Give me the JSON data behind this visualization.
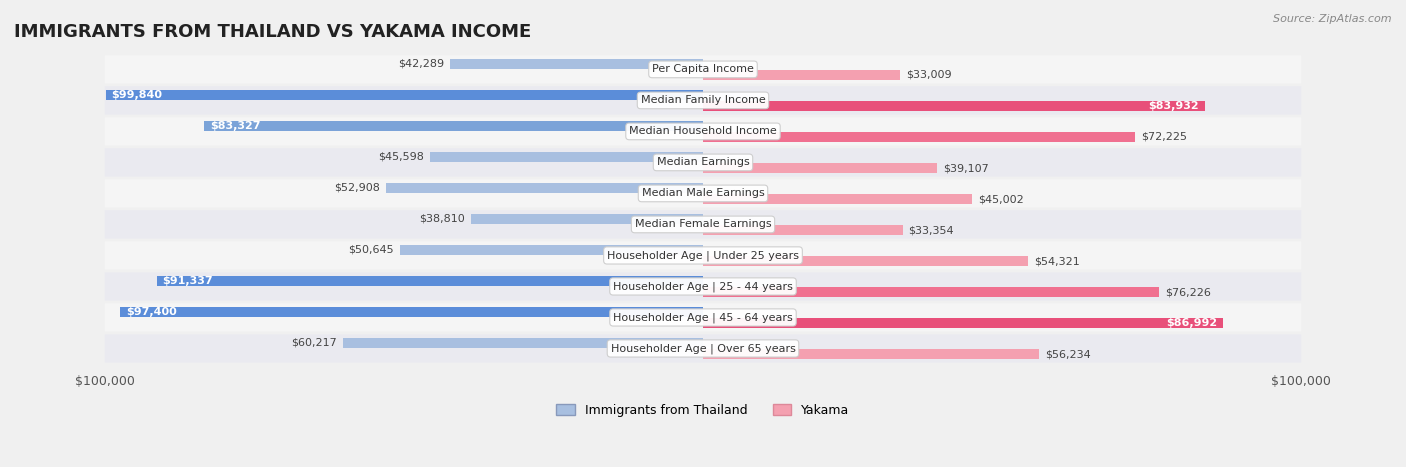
{
  "title": "IMMIGRANTS FROM THAILAND VS YAKAMA INCOME",
  "source": "Source: ZipAtlas.com",
  "categories": [
    "Per Capita Income",
    "Median Family Income",
    "Median Household Income",
    "Median Earnings",
    "Median Male Earnings",
    "Median Female Earnings",
    "Householder Age | Under 25 years",
    "Householder Age | 25 - 44 years",
    "Householder Age | 45 - 64 years",
    "Householder Age | Over 65 years"
  ],
  "thailand_values": [
    42289,
    99840,
    83327,
    45598,
    52908,
    38810,
    50645,
    91337,
    97400,
    60217
  ],
  "yakama_values": [
    33009,
    83932,
    72225,
    39107,
    45002,
    33354,
    54321,
    76226,
    86992,
    56234
  ],
  "thailand_labels": [
    "$42,289",
    "$99,840",
    "$83,327",
    "$45,598",
    "$52,908",
    "$38,810",
    "$50,645",
    "$91,337",
    "$97,400",
    "$60,217"
  ],
  "yakama_labels": [
    "$33,009",
    "$83,932",
    "$72,225",
    "$39,107",
    "$45,002",
    "$33,354",
    "$54,321",
    "$76,226",
    "$86,992",
    "$56,234"
  ],
  "max_value": 100000,
  "thailand_color": "#90aadb",
  "yakama_color": "#f08090",
  "thailand_color_full": "#6688cc",
  "yakama_color_full": "#e8507a",
  "bg_color": "#f5f5f5",
  "row_bg_even": "#ffffff",
  "row_bg_odd": "#eeeeee",
  "legend_thailand": "Immigrants from Thailand",
  "legend_yakama": "Yakama",
  "xlim": 100000
}
